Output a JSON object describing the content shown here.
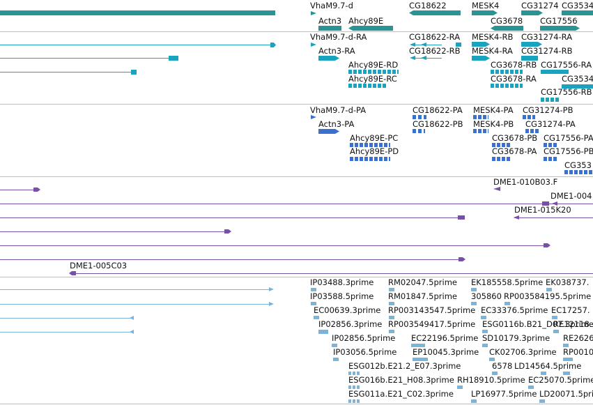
{
  "colors": {
    "gene": "#2a9393",
    "mrna": "#1aa3bf",
    "cds": "#3b6fd0",
    "bac": "#7850a8",
    "est": "#7ab4d8",
    "divider": "#bdbdbd"
  },
  "tracks": {
    "genes": {
      "labels": [
        "VhaM9.7-d",
        "CG18622",
        "MESK4",
        "CG31274",
        "CG3534",
        "Actn3",
        "Ahcy89E",
        "CG3678",
        "CG17556"
      ]
    },
    "mrna": {
      "labels": [
        "VhaM9.7-d-RA",
        "CG18622-RA",
        "MESK4-RB",
        "CG31274-RA",
        "Actn3-RA",
        "CG18622-RB",
        "MESK4-RA",
        "CG31274-RB",
        "Ahcy89E-RD",
        "CG3678-RB",
        "CG17556-RA",
        "Ahcy89E-RC",
        "CG3678-RA",
        "CG3534",
        "CG17556-RB"
      ]
    },
    "cds": {
      "labels": [
        "VhaM9.7-d-PA",
        "CG18622-PA",
        "MESK4-PA",
        "CG31274-PB",
        "Actn3-PA",
        "CG18622-PB",
        "MESK4-PB",
        "CG31274-PA",
        "Ahcy89E-PC",
        "CG3678-PB",
        "CG17556-PA",
        "Ahcy89E-PD",
        "CG3678-PA",
        "CG17556-PB",
        "CG353"
      ]
    },
    "bac": {
      "labels": [
        "DME1-010B03.F",
        "DME1-004",
        "DME1-015K20",
        "DME1-005C03"
      ]
    },
    "est": {
      "labels": [
        "IP03488.3prime",
        "RM02047.5prime",
        "EK185558.5prime",
        "EK038737.",
        "IP03588.5prime",
        "RM01847.5prime",
        "305860",
        "RP003584195.5prime",
        "EC00639.3prime",
        "RP003143547.5prime",
        "EC33376.5prime",
        "EC17257.",
        "IP02856.3prime",
        "RP003549417.5prime",
        "ESG0116b.B21_D07.3prime",
        "RE12118.",
        "IP02856.5prime",
        "EC22196.5prime",
        "SD10179.3prime",
        "RE2626",
        "IP03056.5prime",
        "EP10045.3prime",
        "CK02706.3prime",
        "RP0010",
        "ESG012b.E21.2_E07.3prime",
        "6578",
        "LD14564.5prime",
        "ESG016b.E21_H08.3prime",
        "RH18910.5prime",
        "EC25070.5prime",
        "ESG011a.E21_C02.3prime",
        "LP16977.5prime",
        "LD20071.5prime"
      ]
    }
  }
}
